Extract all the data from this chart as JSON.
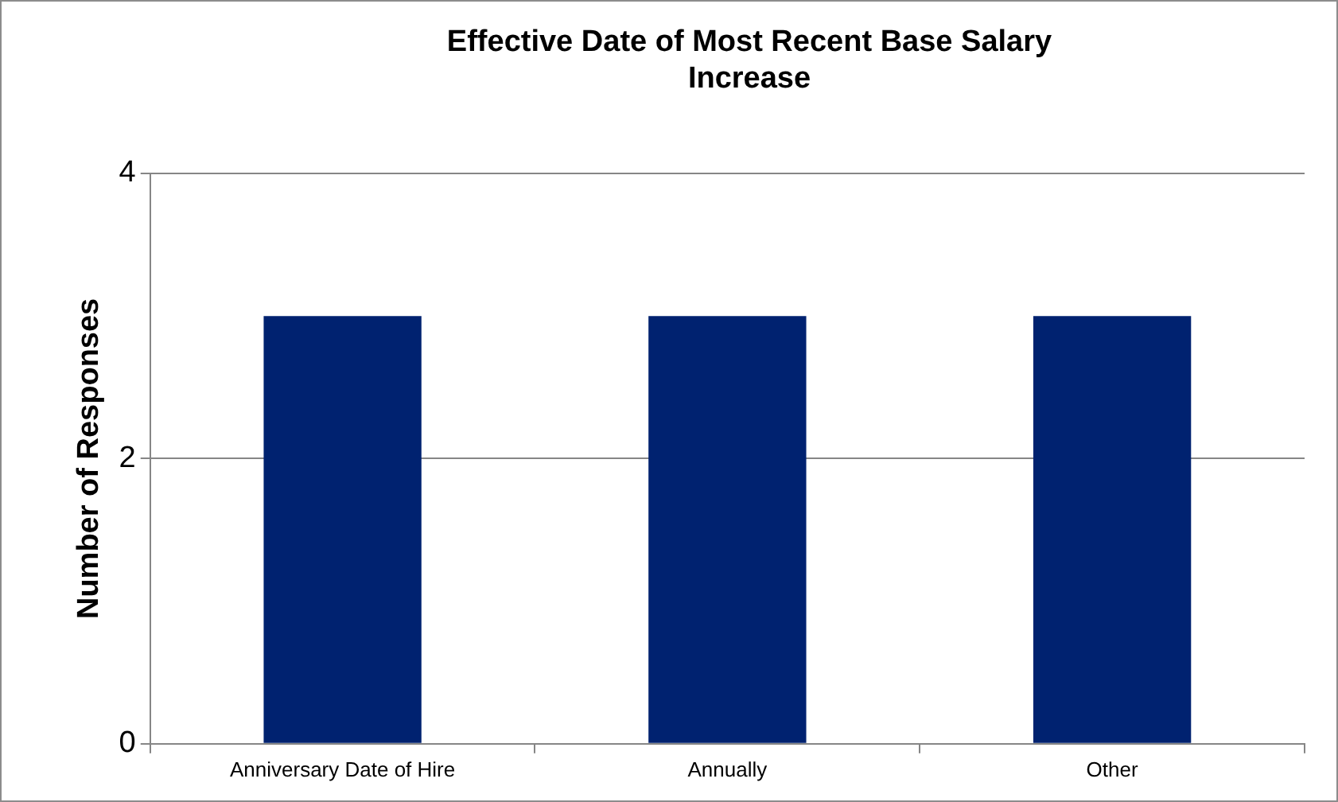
{
  "chart_data": {
    "type": "bar",
    "title": "Effective Date of Most Recent Base Salary Increase",
    "ylabel": "Number of Responses",
    "categories": [
      "Anniversary Date of Hire",
      "Annually",
      "Other"
    ],
    "values": [
      3,
      3,
      3
    ],
    "color": "#002270",
    "ylim": [
      0,
      4
    ],
    "yticks": [
      0,
      2,
      4
    ],
    "grid": "y"
  }
}
